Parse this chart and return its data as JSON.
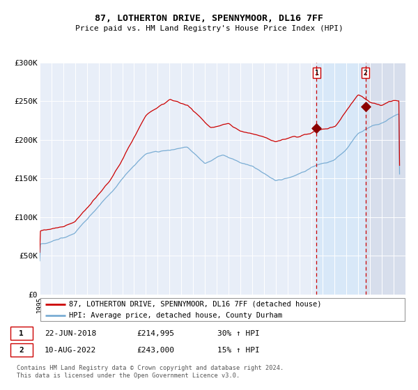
{
  "title": "87, LOTHERTON DRIVE, SPENNYMOOR, DL16 7FF",
  "subtitle": "Price paid vs. HM Land Registry's House Price Index (HPI)",
  "legend_line1": "87, LOTHERTON DRIVE, SPENNYMOOR, DL16 7FF (detached house)",
  "legend_line2": "HPI: Average price, detached house, County Durham",
  "annotation1_date": "22-JUN-2018",
  "annotation1_price": "£214,995",
  "annotation1_hpi": "30% ↑ HPI",
  "annotation2_date": "10-AUG-2022",
  "annotation2_price": "£243,000",
  "annotation2_hpi": "15% ↑ HPI",
  "footer": "Contains HM Land Registry data © Crown copyright and database right 2024.\nThis data is licensed under the Open Government Licence v3.0.",
  "red_color": "#cc0000",
  "blue_color": "#7aadd4",
  "background_color": "#ffffff",
  "plot_bg_color": "#e8eef8",
  "highlight_bg": "#d8e8f8",
  "ylim": [
    0,
    300000
  ],
  "ytick_values": [
    0,
    50000,
    100000,
    150000,
    200000,
    250000,
    300000
  ],
  "ytick_labels": [
    "£0",
    "£50K",
    "£100K",
    "£150K",
    "£200K",
    "£250K",
    "£300K"
  ],
  "sale1_x": 2018.47,
  "sale1_y": 214995,
  "sale2_x": 2022.61,
  "sale2_y": 243000,
  "xmin": 1995,
  "xmax": 2025.5
}
